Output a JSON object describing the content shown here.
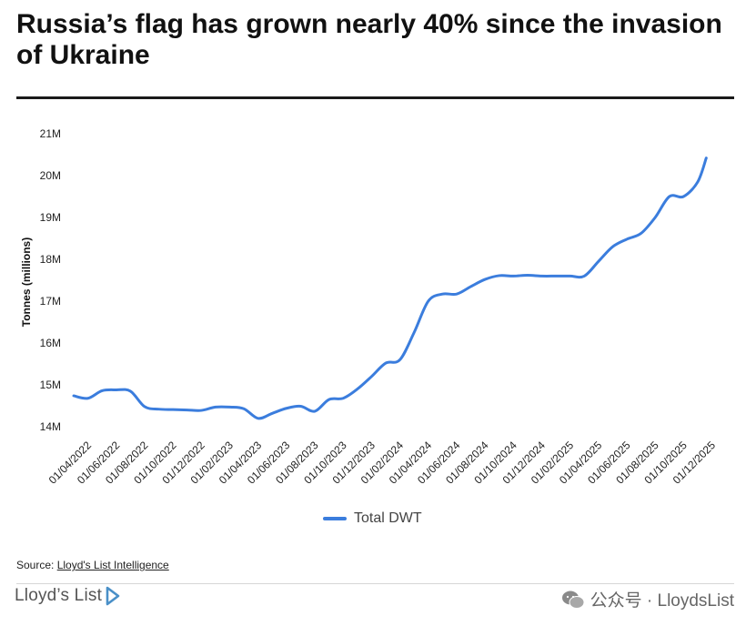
{
  "header": {
    "title": "Russia’s flag has grown nearly 40% since the invasion of Ukraine"
  },
  "chart_data": {
    "type": "line",
    "title": "Russia’s flag has grown nearly 40% since the invasion of Ukraine",
    "xlabel": "",
    "ylabel": "Tonnes (millions)",
    "ylim": [
      14,
      21
    ],
    "yticks": [
      14,
      15,
      16,
      17,
      18,
      19,
      20,
      21
    ],
    "ytick_labels": [
      "14M",
      "15M",
      "16M",
      "17M",
      "18M",
      "19M",
      "20M",
      "21M"
    ],
    "xtick_labels": [
      "01/04/2022",
      "01/06/2022",
      "01/08/2022",
      "01/10/2022",
      "01/12/2022",
      "01/02/2023",
      "01/04/2023",
      "01/06/2023",
      "01/08/2023",
      "01/10/2023",
      "01/12/2023",
      "01/02/2024",
      "01/04/2024",
      "01/06/2024",
      "01/08/2024",
      "01/10/2024",
      "01/12/2024",
      "01/02/2025",
      "01/04/2025",
      "01/06/2025",
      "01/08/2025",
      "01/10/2025",
      "01/12/2025"
    ],
    "grid": false,
    "legend_position": "bottom-center",
    "series": [
      {
        "name": "Total DWT",
        "color": "#3b7ddd",
        "x": [
          0,
          0.5,
          1,
          1.5,
          2,
          2.5,
          3,
          3.5,
          4,
          4.5,
          5,
          5.5,
          6,
          6.5,
          7,
          7.5,
          8,
          8.5,
          9,
          9.5,
          10,
          10.5,
          11,
          11.5,
          12,
          12.5,
          13,
          13.5,
          14,
          14.5,
          15,
          15.5,
          16,
          16.5,
          17,
          17.5,
          18,
          18.5,
          19,
          19.5,
          20,
          20.5,
          21,
          21.5,
          22,
          22.3
        ],
        "values": [
          14.74,
          14.68,
          14.86,
          14.88,
          14.85,
          14.48,
          14.42,
          14.41,
          14.4,
          14.39,
          14.47,
          14.47,
          14.43,
          14.2,
          14.32,
          14.44,
          14.49,
          14.37,
          14.65,
          14.68,
          14.9,
          15.2,
          15.52,
          15.6,
          16.25,
          17.0,
          17.17,
          17.17,
          17.35,
          17.52,
          17.61,
          17.6,
          17.62,
          17.6,
          17.6,
          17.6,
          17.6,
          17.95,
          18.3,
          18.48,
          18.62,
          19.0,
          19.5,
          19.5,
          19.85,
          20.42
        ]
      }
    ]
  },
  "legend": {
    "label": "Total DWT",
    "color": "#3b7ddd"
  },
  "footer": {
    "source_prefix": "Source: ",
    "source_link": "Lloyd's List Intelligence",
    "brand": "Lloyd’s List",
    "watermark": "公众号 · LloydsList"
  }
}
